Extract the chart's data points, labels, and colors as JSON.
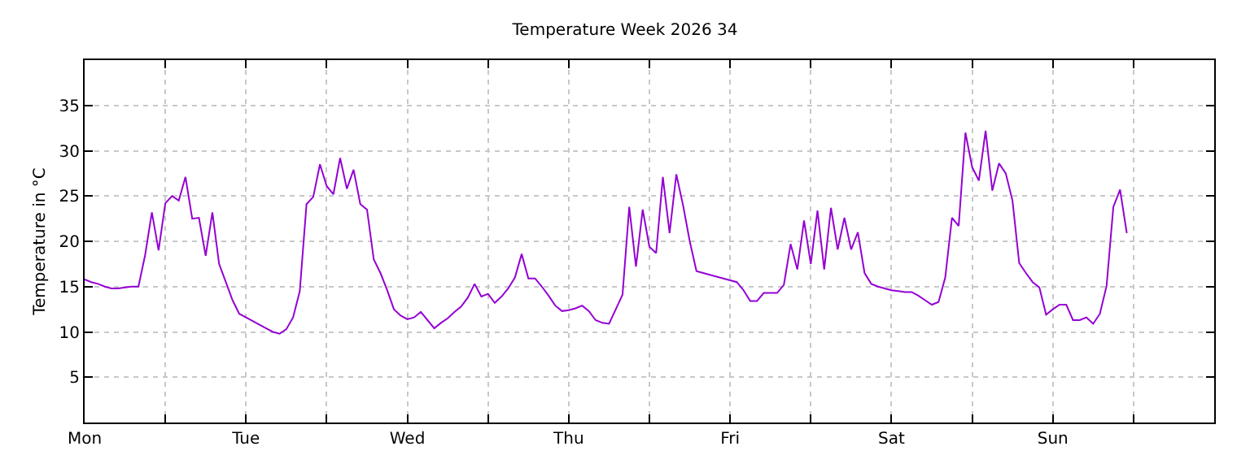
{
  "chart_data": {
    "type": "line",
    "title": "Temperature Week 2026 34",
    "ylabel": "Temperature in °C",
    "categories": [
      "Mon",
      null,
      null,
      null,
      null,
      null,
      null,
      null,
      null,
      null,
      null,
      null,
      null,
      null,
      null,
      null,
      null,
      null,
      null,
      null,
      null,
      null,
      null,
      null,
      "Tue",
      null,
      null,
      null,
      null,
      null,
      null,
      null,
      null,
      null,
      null,
      null,
      null,
      null,
      null,
      null,
      null,
      null,
      null,
      null,
      null,
      null,
      null,
      null,
      "Wed",
      null,
      null,
      null,
      null,
      null,
      null,
      null,
      null,
      null,
      null,
      null,
      null,
      null,
      null,
      null,
      null,
      null,
      null,
      null,
      null,
      null,
      null,
      null,
      "Thu",
      null,
      null,
      null,
      null,
      null,
      null,
      null,
      null,
      null,
      null,
      null,
      null,
      null,
      null,
      null,
      null,
      null,
      null,
      null,
      null,
      null,
      null,
      null,
      "Fri",
      null,
      null,
      null,
      null,
      null,
      null,
      null,
      null,
      null,
      null,
      null,
      null,
      null,
      null,
      null,
      null,
      null,
      null,
      null,
      null,
      null,
      null,
      null,
      "Sat",
      null,
      null,
      null,
      null,
      null,
      null,
      null,
      null,
      null,
      null,
      null,
      null,
      null,
      null,
      null,
      null,
      null,
      null,
      null,
      null,
      null,
      null,
      null,
      "Sun",
      null,
      null,
      null,
      null,
      null,
      null,
      null,
      null,
      null,
      null,
      null,
      null,
      null,
      null,
      null,
      null,
      null,
      null,
      null,
      null,
      null,
      null,
      null
    ],
    "ylim": [
      0,
      40
    ],
    "yticks": [
      5,
      10,
      15,
      20,
      25,
      30,
      35
    ],
    "grid": true,
    "line_style": "solid",
    "series": [
      {
        "color": "#9400d3",
        "values": [
          15.8,
          15.5,
          15.3,
          15.0,
          14.8,
          14.8,
          14.9,
          15.0,
          15.0,
          18.5,
          23.2,
          19.0,
          24.2,
          25.0,
          24.5,
          27.1,
          22.5,
          22.6,
          18.4,
          23.2,
          17.5,
          15.5,
          13.5,
          12.0,
          11.6,
          11.2,
          10.8,
          10.4,
          10.0,
          9.8,
          10.3,
          11.6,
          14.5,
          24.1,
          24.9,
          28.5,
          26.1,
          25.2,
          29.2,
          25.8,
          27.9,
          24.1,
          23.5,
          18.0,
          16.5,
          14.6,
          12.5,
          11.8,
          11.4,
          11.6,
          12.2,
          11.3,
          10.4,
          11.0,
          11.5,
          12.2,
          12.8,
          13.8,
          15.3,
          13.9,
          14.2,
          13.2,
          13.9,
          14.8,
          16.0,
          18.6,
          15.9,
          15.9,
          15.0,
          14.0,
          12.9,
          12.3,
          12.4,
          12.6,
          12.9,
          12.3,
          11.3,
          11.0,
          10.9,
          12.5,
          14.1,
          23.8,
          17.2,
          23.5,
          19.4,
          18.7,
          27.1,
          20.9,
          27.4,
          24.0,
          20.0,
          16.7,
          16.5,
          16.3,
          16.1,
          15.9,
          15.7,
          15.5,
          14.6,
          13.4,
          13.4,
          14.3,
          14.3,
          14.3,
          15.2,
          19.7,
          16.9,
          22.3,
          17.5,
          23.4,
          16.9,
          23.7,
          19.1,
          22.6,
          19.1,
          21.0,
          16.5,
          15.3,
          15.0,
          14.8,
          14.6,
          14.5,
          14.4,
          14.4,
          14.0,
          13.5,
          13.0,
          13.3,
          16.0,
          22.6,
          21.7,
          32.0,
          28.2,
          26.7,
          32.2,
          25.6,
          28.6,
          27.5,
          24.5,
          17.6,
          16.5,
          15.5,
          14.9,
          11.9,
          12.5,
          13.0,
          13.0,
          11.3,
          11.3,
          11.6,
          10.9,
          12.0,
          15.1,
          23.8,
          25.7,
          20.9,
          null,
          null,
          null,
          null,
          null,
          null,
          null,
          null,
          null,
          null,
          null,
          null
        ]
      }
    ]
  }
}
